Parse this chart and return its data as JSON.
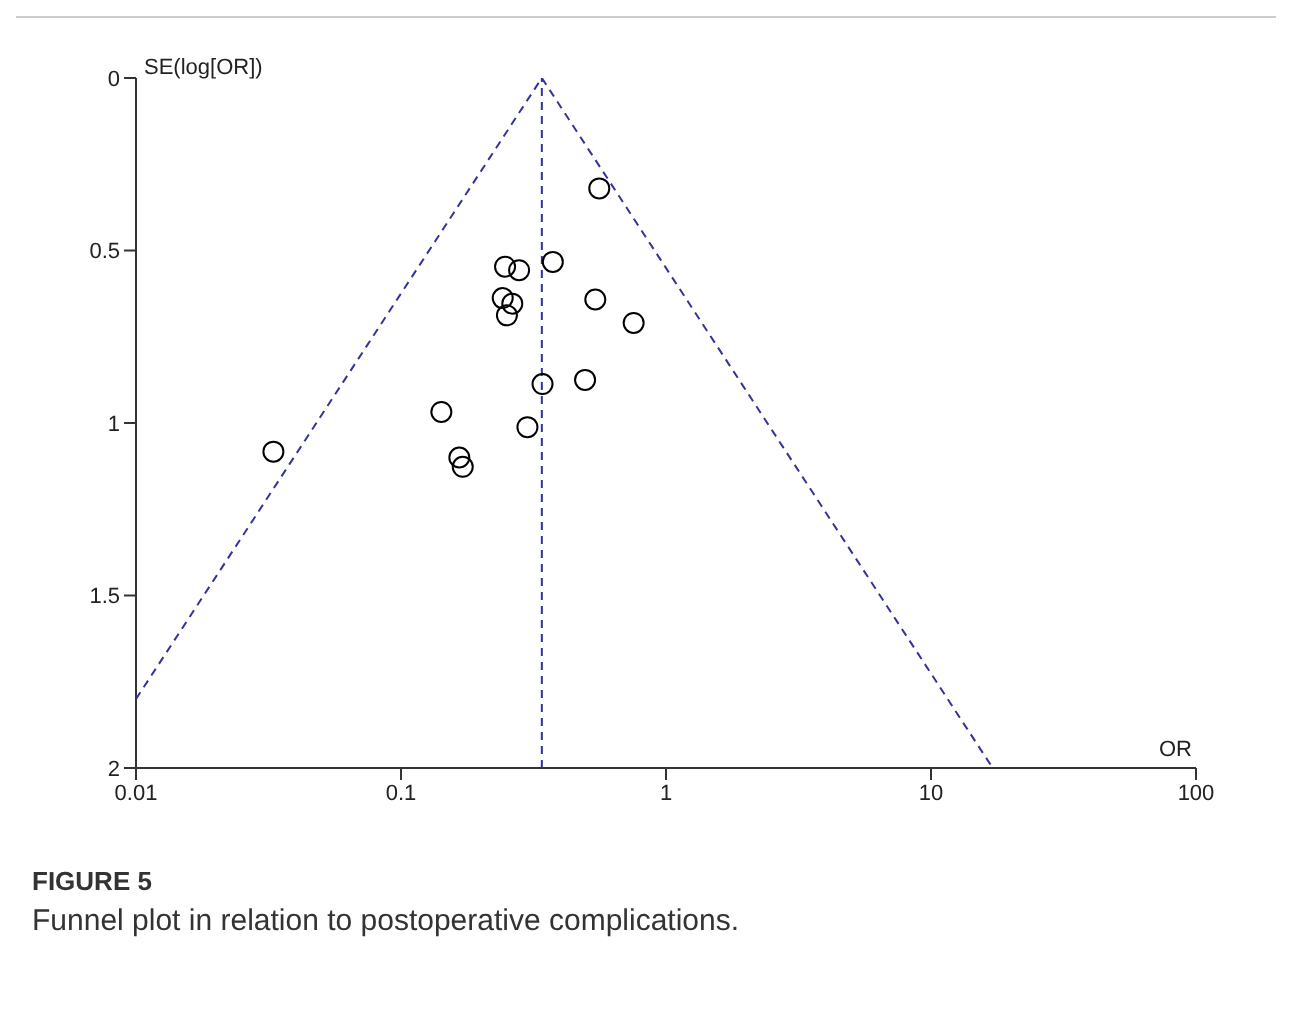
{
  "chart_data": {
    "type": "scatter",
    "title": "FIGURE 5",
    "subtitle": "Funnel plot in relation to postoperative complications.",
    "xlabel": "OR",
    "ylabel": "SE(log[OR])",
    "log": "x",
    "xlim": [
      0.01,
      100
    ],
    "xticks": [
      0.01,
      0.1,
      1,
      10,
      100
    ],
    "ylim": [
      2,
      0
    ],
    "yticks": [
      0,
      0.5,
      1,
      1.5,
      2
    ],
    "series": [
      {
        "color": "#000000",
        "marker": "circle",
        "x": [
          0.56,
          0.247,
          0.279,
          0.374,
          0.242,
          0.263,
          0.251,
          0.541,
          0.755,
          0.342,
          0.495,
          0.142,
          0.3,
          0.033,
          0.166,
          0.171
        ],
        "values": [
          0.32,
          0.547,
          0.557,
          0.533,
          0.638,
          0.654,
          0.688,
          0.642,
          0.71,
          0.887,
          0.875,
          0.968,
          1.012,
          1.083,
          1.1,
          1.127
        ]
      },
      {
        "type": "line",
        "color": "#333399",
        "marker": "none",
        "line_style": "dashed",
        "x": [
          0.01,
          0.34,
          17.1
        ],
        "values": [
          1.8,
          0,
          2
        ]
      }
    ],
    "ref_lines": [
      {
        "axis": "x",
        "value": 0.34,
        "color": "#333399",
        "line_style": "dashed"
      }
    ]
  }
}
